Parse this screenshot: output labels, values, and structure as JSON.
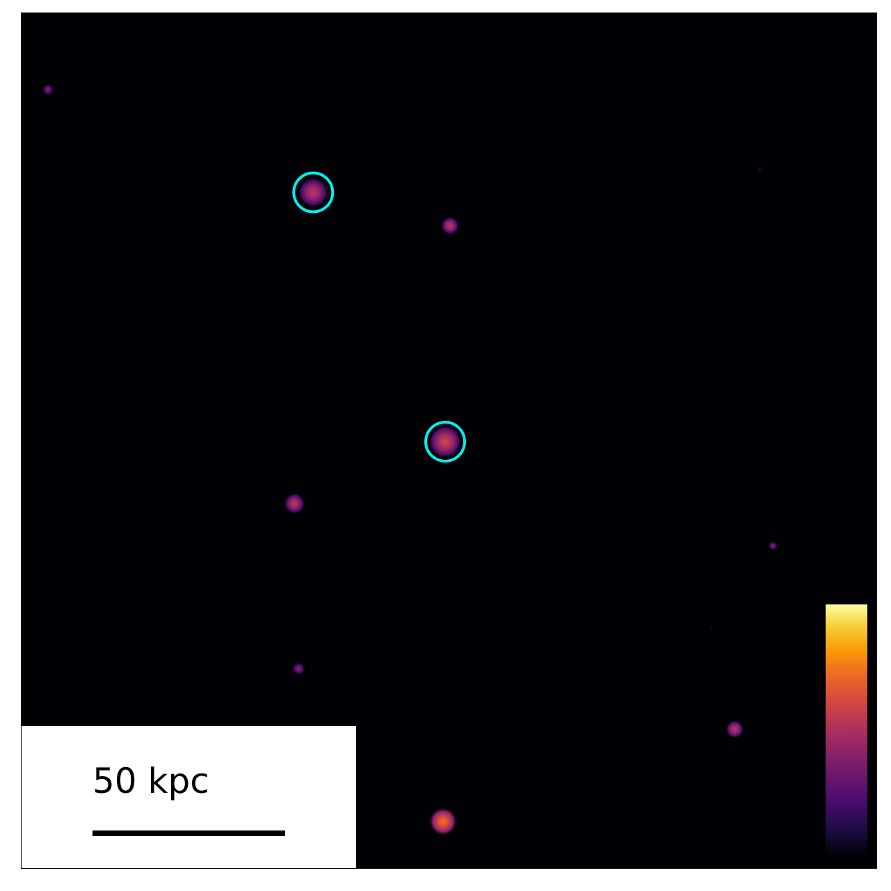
{
  "scale_bar": {
    "label": "50 kpc"
  },
  "colors": {
    "background": "#010004",
    "marker_ring": "#00f0f0",
    "frame": "#000000"
  },
  "colormap": "inferno",
  "sources_visible": 11,
  "circled_sources": 2
}
